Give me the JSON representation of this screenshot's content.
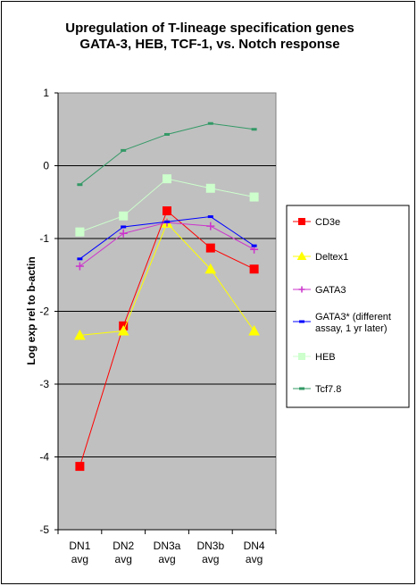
{
  "chart_data": {
    "type": "line",
    "title": [
      "Upregulation of T-lineage specification  genes",
      "GATA-3, HEB, TCF-1, vs. Notch response"
    ],
    "ylabel": "Log exp rel to b-actin",
    "xlabel": "",
    "categories": [
      "DN1 avg",
      "DN2 avg",
      "DN3a avg",
      "DN3b avg",
      "DN4 avg"
    ],
    "category_lines": [
      [
        "DN1",
        "avg"
      ],
      [
        "DN2",
        "avg"
      ],
      [
        "DN3a",
        "avg"
      ],
      [
        "DN3b",
        "avg"
      ],
      [
        "DN4",
        "avg"
      ]
    ],
    "ylim": [
      -5,
      1
    ],
    "yticks": [
      1,
      0,
      -1,
      -2,
      -3,
      -4,
      -5
    ],
    "grid": true,
    "legend_position": "right",
    "plot_background": "#c0c0c0",
    "series": [
      {
        "name": "CD3e",
        "color": "#ff0000",
        "marker": "square",
        "values": [
          -4.13,
          -2.2,
          -0.62,
          -1.13,
          -1.42
        ]
      },
      {
        "name": "Deltex1",
        "color": "#ffff00",
        "marker": "triangle",
        "values": [
          -2.33,
          -2.27,
          -0.79,
          -1.42,
          -2.27
        ]
      },
      {
        "name": "GATA3",
        "color": "#cc33cc",
        "marker": "plus",
        "values": [
          -1.38,
          -0.93,
          -0.78,
          -0.83,
          -1.15
        ]
      },
      {
        "name": "GATA3* (different assay, 1 yr later)",
        "legend_lines": [
          "GATA3* (different",
          "assay, 1 yr later)"
        ],
        "color": "#0000ff",
        "marker": "dash",
        "values": [
          -1.28,
          -0.84,
          -0.77,
          -0.7,
          -1.1
        ]
      },
      {
        "name": "HEB",
        "color": "#ccffcc",
        "marker": "square",
        "values": [
          -0.91,
          -0.69,
          -0.18,
          -0.31,
          -0.43
        ]
      },
      {
        "name": "Tcf7.8",
        "color": "#339966",
        "marker": "dash",
        "values": [
          -0.26,
          0.21,
          0.43,
          0.58,
          0.5
        ]
      }
    ]
  }
}
